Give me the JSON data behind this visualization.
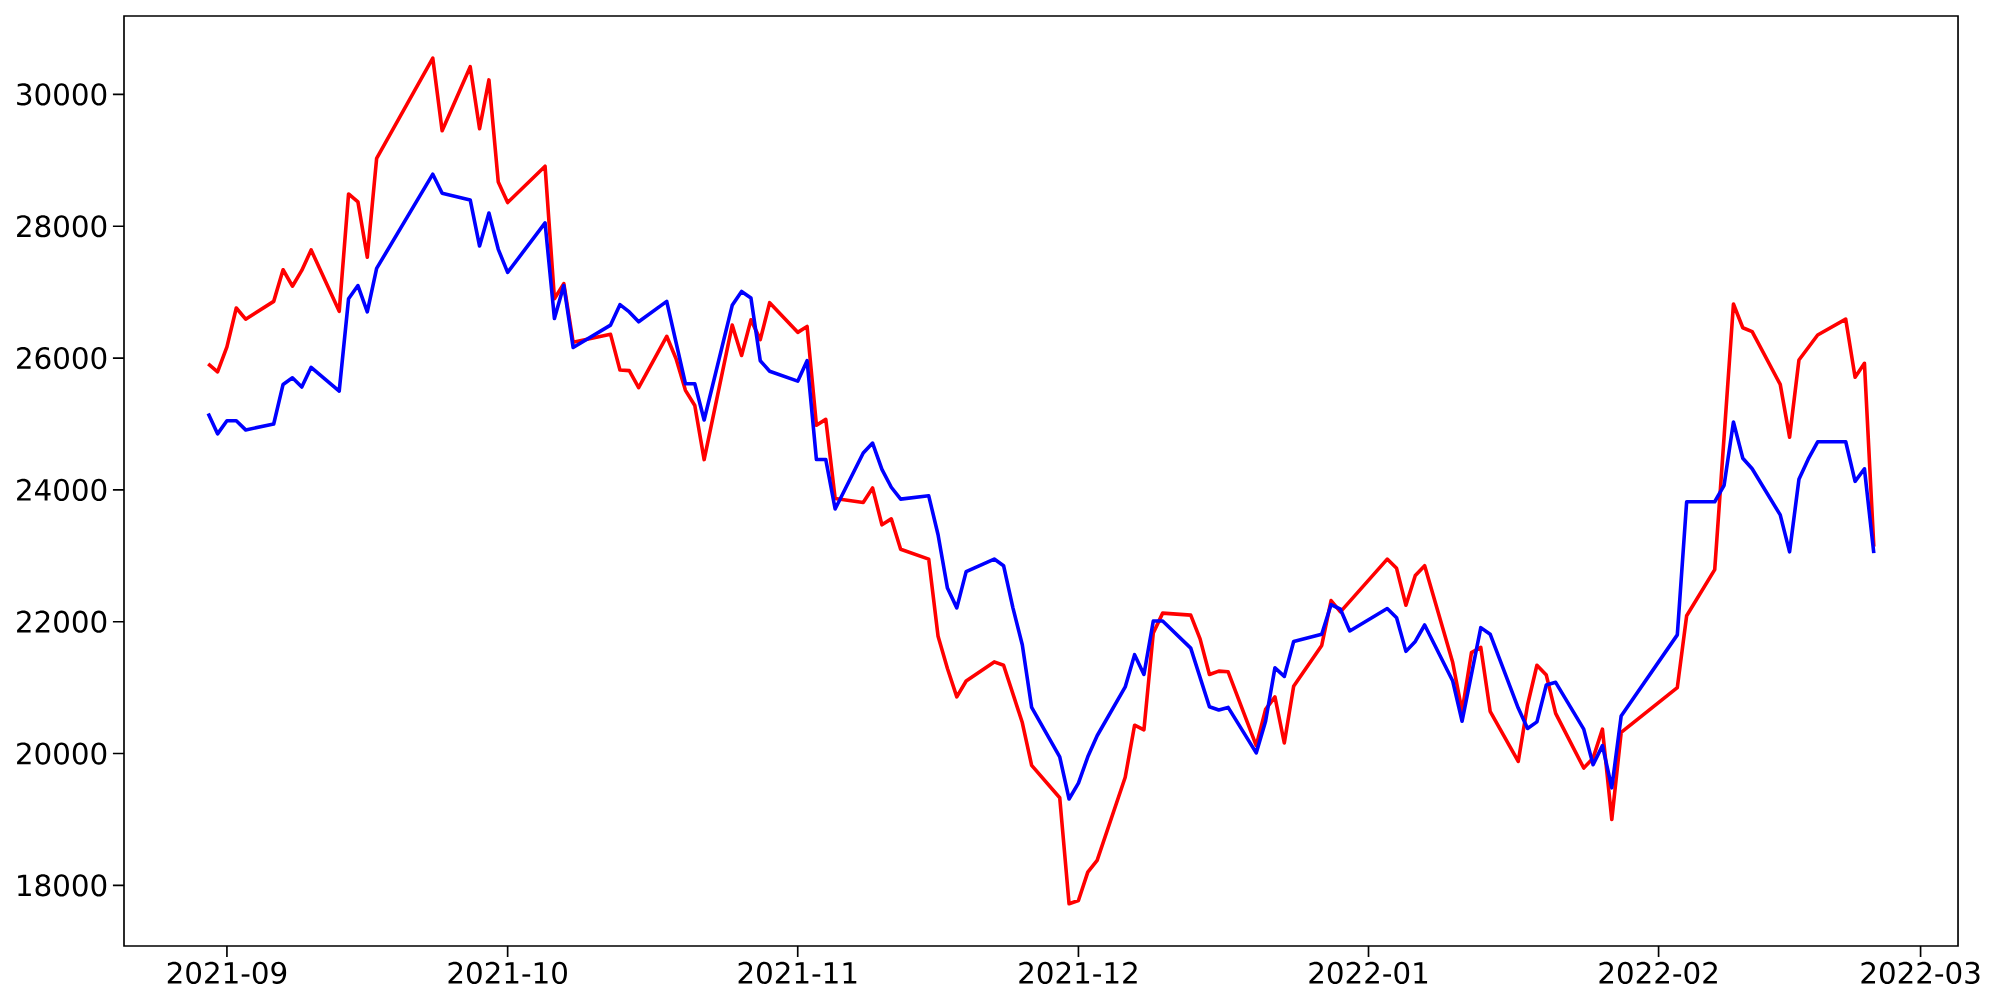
{
  "chart_data": {
    "type": "line",
    "xlim": [
      "2021-08-21",
      "2022-03-05"
    ],
    "ylim": [
      17080,
      31190
    ],
    "xticks": [
      "2021-09",
      "2021-10",
      "2021-11",
      "2021-12",
      "2022-01",
      "2022-02",
      "2022-03"
    ],
    "yticks": [
      18000,
      20000,
      22000,
      24000,
      26000,
      28000,
      30000
    ],
    "marker": "none",
    "line_style": "solid",
    "series": [
      {
        "color": "#ff0000",
        "x": [
          "2021-08-30",
          "2021-08-31",
          "2021-09-01",
          "2021-09-02",
          "2021-09-03",
          "2021-09-06",
          "2021-09-07",
          "2021-09-08",
          "2021-09-09",
          "2021-09-10",
          "2021-09-13",
          "2021-09-14",
          "2021-09-15",
          "2021-09-16",
          "2021-09-17",
          "2021-09-23",
          "2021-09-24",
          "2021-09-27",
          "2021-09-28",
          "2021-09-29",
          "2021-09-30",
          "2021-10-01",
          "2021-10-05",
          "2021-10-06",
          "2021-10-07",
          "2021-10-08",
          "2021-10-12",
          "2021-10-13",
          "2021-10-14",
          "2021-10-15",
          "2021-10-18",
          "2021-10-19",
          "2021-10-20",
          "2021-10-21",
          "2021-10-22",
          "2021-10-25",
          "2021-10-26",
          "2021-10-27",
          "2021-10-28",
          "2021-10-29",
          "2021-11-01",
          "2021-11-02",
          "2021-11-03",
          "2021-11-04",
          "2021-11-05",
          "2021-11-08",
          "2021-11-09",
          "2021-11-10",
          "2021-11-11",
          "2021-11-12",
          "2021-11-15",
          "2021-11-16",
          "2021-11-17",
          "2021-11-18",
          "2021-11-19",
          "2021-11-22",
          "2021-11-23",
          "2021-11-25",
          "2021-11-26",
          "2021-11-29",
          "2021-11-30",
          "2021-12-01",
          "2021-12-02",
          "2021-12-03",
          "2021-12-06",
          "2021-12-07",
          "2021-12-08",
          "2021-12-09",
          "2021-12-10",
          "2021-12-13",
          "2021-12-14",
          "2021-12-15",
          "2021-12-16",
          "2021-12-17",
          "2021-12-20",
          "2021-12-21",
          "2021-12-22",
          "2021-12-23",
          "2021-12-24",
          "2021-12-27",
          "2021-12-28",
          "2021-12-29",
          "2022-01-03",
          "2022-01-04",
          "2022-01-05",
          "2022-01-06",
          "2022-01-07",
          "2022-01-10",
          "2022-01-11",
          "2022-01-12",
          "2022-01-13",
          "2022-01-14",
          "2022-01-17",
          "2022-01-18",
          "2022-01-19",
          "2022-01-20",
          "2022-01-21",
          "2022-01-24",
          "2022-01-25",
          "2022-01-26",
          "2022-01-27",
          "2022-01-28",
          "2022-02-03",
          "2022-02-04",
          "2022-02-07",
          "2022-02-09",
          "2022-02-10",
          "2022-02-11",
          "2022-02-14",
          "2022-02-15",
          "2022-02-16",
          "2022-02-18",
          "2022-02-21",
          "2022-02-22",
          "2022-02-23",
          "2022-02-24"
        ],
        "values": [
          25910,
          25790,
          26170,
          26760,
          26590,
          26860,
          27340,
          27090,
          27330,
          27640,
          26710,
          28490,
          28370,
          27530,
          29030,
          30550,
          29450,
          30420,
          29480,
          30220,
          28670,
          28360,
          28910,
          26900,
          27130,
          26240,
          26360,
          25820,
          25810,
          25550,
          26330,
          25990,
          25510,
          25280,
          24460,
          26500,
          26040,
          26580,
          26280,
          26840,
          26390,
          26480,
          24980,
          25070,
          23870,
          23810,
          24030,
          23470,
          23560,
          23100,
          22950,
          21780,
          21290,
          20860,
          21100,
          21390,
          21340,
          20470,
          19820,
          19330,
          17720,
          17770,
          18200,
          18380,
          19640,
          20430,
          20360,
          21830,
          22130,
          22100,
          21740,
          21200,
          21250,
          21240,
          20120,
          20670,
          20860,
          20160,
          21020,
          21640,
          22320,
          22150,
          22950,
          22810,
          22250,
          22700,
          22850,
          21380,
          20640,
          21530,
          21610,
          20640,
          19880,
          20740,
          21340,
          21190,
          20610,
          19780,
          19930,
          20370,
          19000,
          20320,
          21000,
          22090,
          22790,
          26820,
          26460,
          26400,
          25600,
          24800,
          25970,
          26350,
          26590,
          25710,
          25920,
          23140
        ]
      },
      {
        "color": "#0000ff",
        "x": [
          "2021-08-30",
          "2021-08-31",
          "2021-09-01",
          "2021-09-02",
          "2021-09-03",
          "2021-09-06",
          "2021-09-07",
          "2021-09-08",
          "2021-09-09",
          "2021-09-10",
          "2021-09-13",
          "2021-09-14",
          "2021-09-15",
          "2021-09-16",
          "2021-09-17",
          "2021-09-23",
          "2021-09-24",
          "2021-09-27",
          "2021-09-28",
          "2021-09-29",
          "2021-09-30",
          "2021-10-01",
          "2021-10-05",
          "2021-10-06",
          "2021-10-07",
          "2021-10-08",
          "2021-10-12",
          "2021-10-13",
          "2021-10-14",
          "2021-10-15",
          "2021-10-18",
          "2021-10-20",
          "2021-10-21",
          "2021-10-22",
          "2021-10-25",
          "2021-10-26",
          "2021-10-27",
          "2021-10-28",
          "2021-10-29",
          "2021-11-01",
          "2021-11-02",
          "2021-11-03",
          "2021-11-04",
          "2021-11-05",
          "2021-11-08",
          "2021-11-09",
          "2021-11-10",
          "2021-11-11",
          "2021-11-12",
          "2021-11-15",
          "2021-11-16",
          "2021-11-17",
          "2021-11-18",
          "2021-11-19",
          "2021-11-22",
          "2021-11-23",
          "2021-11-24",
          "2021-11-25",
          "2021-11-26",
          "2021-11-29",
          "2021-11-30",
          "2021-12-01",
          "2021-12-02",
          "2021-12-03",
          "2021-12-06",
          "2021-12-07",
          "2021-12-08",
          "2021-12-09",
          "2021-12-10",
          "2021-12-13",
          "2021-12-15",
          "2021-12-16",
          "2021-12-17",
          "2021-12-20",
          "2021-12-21",
          "2021-12-22",
          "2021-12-23",
          "2021-12-24",
          "2021-12-27",
          "2021-12-28",
          "2021-12-29",
          "2021-12-30",
          "2022-01-03",
          "2022-01-04",
          "2022-01-05",
          "2022-01-06",
          "2022-01-07",
          "2022-01-10",
          "2022-01-11",
          "2022-01-13",
          "2022-01-14",
          "2022-01-17",
          "2022-01-18",
          "2022-01-19",
          "2022-01-20",
          "2022-01-21",
          "2022-01-24",
          "2022-01-25",
          "2022-01-26",
          "2022-01-27",
          "2022-01-28",
          "2022-02-03",
          "2022-02-04",
          "2022-02-07",
          "2022-02-08",
          "2022-02-09",
          "2022-02-10",
          "2022-02-11",
          "2022-02-14",
          "2022-02-15",
          "2022-02-16",
          "2022-02-17",
          "2022-02-18",
          "2022-02-21",
          "2022-02-22",
          "2022-02-23",
          "2022-02-24"
        ],
        "values": [
          25160,
          24850,
          25050,
          25050,
          24910,
          25000,
          25600,
          25700,
          25560,
          25860,
          25500,
          26900,
          27100,
          26700,
          27360,
          28790,
          28500,
          28400,
          27700,
          28200,
          27650,
          27300,
          28050,
          26600,
          27100,
          26160,
          26500,
          26810,
          26700,
          26550,
          26860,
          25610,
          25610,
          25060,
          26800,
          27010,
          26910,
          25960,
          25800,
          25650,
          25960,
          24460,
          24460,
          23710,
          24560,
          24710,
          24310,
          24040,
          23860,
          23910,
          23320,
          22510,
          22210,
          22760,
          22950,
          22850,
          22210,
          21650,
          20700,
          19950,
          19310,
          19550,
          19950,
          20270,
          21010,
          21500,
          21200,
          22010,
          22010,
          21600,
          20710,
          20660,
          20700,
          20010,
          20490,
          21300,
          21170,
          21700,
          21810,
          22260,
          22190,
          21860,
          22200,
          22060,
          21550,
          21700,
          21950,
          21100,
          20490,
          21910,
          21810,
          20690,
          20380,
          20480,
          21040,
          21080,
          20370,
          19830,
          20120,
          19480,
          20570,
          21800,
          23820,
          23820,
          24070,
          25030,
          24480,
          24320,
          23620,
          23060,
          24160,
          24470,
          24730,
          24730,
          24130,
          24320,
          23040
        ]
      }
    ]
  }
}
